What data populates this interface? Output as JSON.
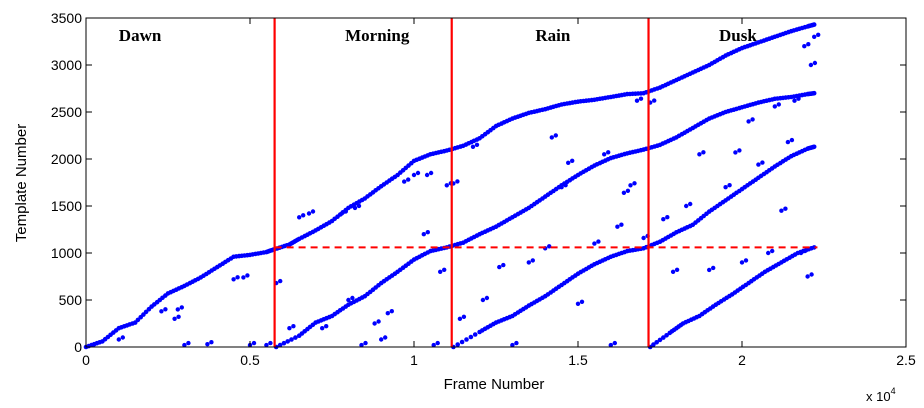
{
  "chart_data": {
    "type": "scatter",
    "title": "",
    "xlabel": "Frame Number",
    "ylabel": "Template Number",
    "x_multiplier": "x 10",
    "x_multiplier_exp": "4",
    "xlim": [
      0,
      2.5
    ],
    "ylim": [
      0,
      3500
    ],
    "xticks": [
      "0",
      "0.5",
      "1",
      "1.5",
      "2",
      "2.5"
    ],
    "yticks": [
      "0",
      "500",
      "1000",
      "1500",
      "2000",
      "2500",
      "3000",
      "3500"
    ],
    "grid": false,
    "point_color": "#0000ff",
    "line_color": "#ff0000",
    "regions": [
      {
        "label": "Dawn",
        "x": 0.1
      },
      {
        "label": "Morning",
        "x": 0.79
      },
      {
        "label": "Rain",
        "x": 1.37
      },
      {
        "label": "Dusk",
        "x": 1.93
      }
    ],
    "vertical_lines": [
      0.575,
      1.115,
      1.715
    ],
    "horizontal_dashed": {
      "y": 1060,
      "x_start": 0.575,
      "x_end": 2.23
    },
    "series": [
      {
        "points": [
          [
            0,
            0
          ],
          [
            0.05,
            60
          ],
          [
            0.1,
            200
          ],
          [
            0.15,
            260
          ],
          [
            0.2,
            430
          ],
          [
            0.25,
            570
          ],
          [
            0.3,
            650
          ],
          [
            0.35,
            740
          ],
          [
            0.4,
            850
          ],
          [
            0.45,
            960
          ],
          [
            0.5,
            980
          ],
          [
            0.55,
            1010
          ],
          [
            0.575,
            1040
          ],
          [
            0.62,
            1090
          ],
          [
            0.65,
            1150
          ],
          [
            0.7,
            1240
          ],
          [
            0.75,
            1340
          ],
          [
            0.8,
            1480
          ],
          [
            0.85,
            1580
          ],
          [
            0.9,
            1710
          ],
          [
            0.95,
            1830
          ],
          [
            1.0,
            1980
          ],
          [
            1.05,
            2050
          ],
          [
            1.1,
            2090
          ],
          [
            1.15,
            2140
          ],
          [
            1.2,
            2220
          ],
          [
            1.25,
            2350
          ],
          [
            1.3,
            2430
          ],
          [
            1.35,
            2490
          ],
          [
            1.4,
            2530
          ],
          [
            1.45,
            2580
          ],
          [
            1.5,
            2610
          ],
          [
            1.55,
            2630
          ],
          [
            1.6,
            2660
          ],
          [
            1.65,
            2690
          ],
          [
            1.7,
            2700
          ],
          [
            1.75,
            2760
          ],
          [
            1.8,
            2840
          ],
          [
            1.85,
            2920
          ],
          [
            1.9,
            3000
          ],
          [
            1.95,
            3100
          ],
          [
            2.0,
            3180
          ],
          [
            2.05,
            3240
          ],
          [
            2.1,
            3300
          ],
          [
            2.15,
            3360
          ],
          [
            2.2,
            3410
          ],
          [
            2.22,
            3430
          ]
        ]
      },
      {
        "points": [
          [
            0.58,
            0
          ],
          [
            0.65,
            120
          ],
          [
            0.7,
            260
          ],
          [
            0.75,
            330
          ],
          [
            0.8,
            450
          ],
          [
            0.85,
            540
          ],
          [
            0.9,
            680
          ],
          [
            0.95,
            800
          ],
          [
            1.0,
            930
          ],
          [
            1.05,
            1020
          ],
          [
            1.1,
            1060
          ],
          [
            1.15,
            1110
          ],
          [
            1.2,
            1200
          ],
          [
            1.25,
            1280
          ],
          [
            1.3,
            1380
          ],
          [
            1.35,
            1480
          ],
          [
            1.4,
            1600
          ],
          [
            1.45,
            1720
          ],
          [
            1.5,
            1830
          ],
          [
            1.55,
            1930
          ],
          [
            1.6,
            2010
          ],
          [
            1.65,
            2060
          ],
          [
            1.7,
            2100
          ],
          [
            1.75,
            2150
          ],
          [
            1.8,
            2230
          ],
          [
            1.85,
            2330
          ],
          [
            1.9,
            2430
          ],
          [
            1.95,
            2500
          ],
          [
            2.0,
            2550
          ],
          [
            2.05,
            2600
          ],
          [
            2.1,
            2640
          ],
          [
            2.15,
            2660
          ],
          [
            2.2,
            2690
          ],
          [
            2.22,
            2700
          ]
        ]
      },
      {
        "points": [
          [
            1.12,
            0
          ],
          [
            1.2,
            160
          ],
          [
            1.25,
            260
          ],
          [
            1.3,
            330
          ],
          [
            1.35,
            440
          ],
          [
            1.4,
            540
          ],
          [
            1.45,
            660
          ],
          [
            1.5,
            780
          ],
          [
            1.55,
            880
          ],
          [
            1.6,
            960
          ],
          [
            1.65,
            1020
          ],
          [
            1.7,
            1050
          ],
          [
            1.75,
            1120
          ],
          [
            1.8,
            1220
          ],
          [
            1.85,
            1300
          ],
          [
            1.9,
            1440
          ],
          [
            1.95,
            1560
          ],
          [
            2.0,
            1680
          ],
          [
            2.05,
            1800
          ],
          [
            2.1,
            1920
          ],
          [
            2.15,
            2030
          ],
          [
            2.2,
            2110
          ],
          [
            2.22,
            2130
          ]
        ]
      },
      {
        "points": [
          [
            1.72,
            0
          ],
          [
            1.78,
            150
          ],
          [
            1.82,
            250
          ],
          [
            1.87,
            330
          ],
          [
            1.92,
            450
          ],
          [
            1.97,
            560
          ],
          [
            2.02,
            680
          ],
          [
            2.07,
            800
          ],
          [
            2.12,
            900
          ],
          [
            2.17,
            1000
          ],
          [
            2.22,
            1060
          ]
        ]
      },
      {
        "points": [
          [
            0.1,
            80
          ],
          [
            0.23,
            380
          ],
          [
            0.27,
            300
          ],
          [
            0.28,
            400
          ],
          [
            0.3,
            20
          ],
          [
            0.37,
            30
          ],
          [
            0.45,
            720
          ],
          [
            0.48,
            740
          ],
          [
            0.5,
            20
          ],
          [
            0.55,
            20
          ],
          [
            0.58,
            680
          ],
          [
            0.62,
            200
          ],
          [
            0.65,
            1380
          ],
          [
            0.68,
            1420
          ],
          [
            0.72,
            200
          ],
          [
            0.78,
            1420
          ],
          [
            0.8,
            500
          ],
          [
            0.82,
            1480
          ],
          [
            0.84,
            20
          ],
          [
            0.88,
            250
          ],
          [
            0.9,
            80
          ],
          [
            0.92,
            360
          ],
          [
            0.97,
            1760
          ],
          [
            1.0,
            1830
          ],
          [
            1.03,
            1200
          ],
          [
            1.04,
            1830
          ],
          [
            1.06,
            20
          ],
          [
            1.08,
            800
          ],
          [
            1.1,
            1720
          ],
          [
            1.12,
            1740
          ],
          [
            1.14,
            300
          ],
          [
            1.18,
            2130
          ],
          [
            1.21,
            500
          ],
          [
            1.26,
            850
          ],
          [
            1.3,
            20
          ],
          [
            1.35,
            900
          ],
          [
            1.4,
            1050
          ],
          [
            1.42,
            2230
          ],
          [
            1.45,
            1700
          ],
          [
            1.47,
            1960
          ],
          [
            1.5,
            460
          ],
          [
            1.55,
            1100
          ],
          [
            1.58,
            2050
          ],
          [
            1.6,
            20
          ],
          [
            1.62,
            1280
          ],
          [
            1.64,
            1640
          ],
          [
            1.66,
            1720
          ],
          [
            1.68,
            2620
          ],
          [
            1.7,
            1160
          ],
          [
            1.72,
            2600
          ],
          [
            1.76,
            1360
          ],
          [
            1.79,
            800
          ],
          [
            1.83,
            1500
          ],
          [
            1.87,
            2050
          ],
          [
            1.9,
            820
          ],
          [
            1.95,
            1700
          ],
          [
            1.98,
            2070
          ],
          [
            2.0,
            900
          ],
          [
            2.02,
            2400
          ],
          [
            2.05,
            1940
          ],
          [
            2.08,
            1000
          ],
          [
            2.1,
            2560
          ],
          [
            2.12,
            1450
          ],
          [
            2.14,
            2180
          ],
          [
            2.16,
            2620
          ],
          [
            2.18,
            1000
          ],
          [
            2.19,
            3200
          ],
          [
            2.2,
            750
          ],
          [
            2.21,
            3000
          ],
          [
            2.22,
            3300
          ]
        ]
      }
    ]
  }
}
